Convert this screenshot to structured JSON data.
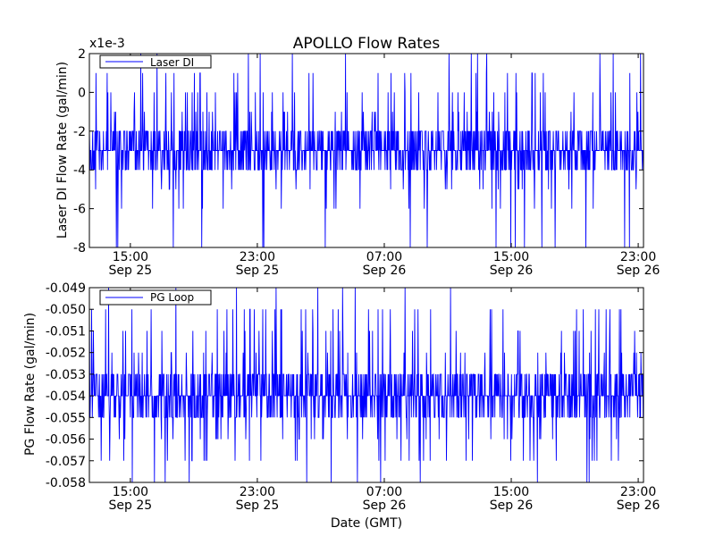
{
  "title": "APOLLO Flow Rates",
  "chart_data": [
    {
      "type": "line",
      "title": "APOLLO Flow Rates",
      "ylabel": "Laser DI Flow Rate (gal/min)",
      "y_multiplier_label": "x1e-3",
      "xlabel": "",
      "ylim": [
        -8,
        2
      ],
      "yticks": [
        "2",
        "0",
        "-2",
        "-4",
        "-6",
        "-8"
      ],
      "xticks": [
        {
          "time": "15:00",
          "date": "Sep 25"
        },
        {
          "time": "23:00",
          "date": "Sep 25"
        },
        {
          "time": "07:00",
          "date": "Sep 26"
        },
        {
          "time": "15:00",
          "date": "Sep 26"
        },
        {
          "time": "23:00",
          "date": "Sep 26"
        }
      ],
      "xlim": [
        "2013-09-25 12:25",
        "2013-09-26 23:20"
      ],
      "grid": false,
      "legend_placement": "top-left",
      "series": [
        {
          "name": "Laser DI",
          "color": "#0000ff",
          "baseline": -3,
          "typical_range": [
            -4,
            -2
          ],
          "min": -8,
          "max": 2,
          "x_spikes_to_min": [
            "2013-09-25 14:50",
            "2013-09-26 07:00"
          ],
          "spikes_to_max": [
            "2013-09-25 13:40",
            "2013-09-25 22:45",
            "2013-09-26 07:00",
            "2013-09-26 15:00"
          ]
        }
      ]
    },
    {
      "type": "line",
      "title": "",
      "ylabel": "PG Flow Rate (gal/min)",
      "xlabel": "Date (GMT)",
      "ylim": [
        -0.058,
        -0.049
      ],
      "yticks": [
        "-0.049",
        "-0.050",
        "-0.051",
        "-0.052",
        "-0.053",
        "-0.054",
        "-0.055",
        "-0.056",
        "-0.057",
        "-0.058"
      ],
      "xticks": [
        {
          "time": "15:00",
          "date": "Sep 25"
        },
        {
          "time": "23:00",
          "date": "Sep 25"
        },
        {
          "time": "07:00",
          "date": "Sep 26"
        },
        {
          "time": "15:00",
          "date": "Sep 26"
        },
        {
          "time": "23:00",
          "date": "Sep 26"
        }
      ],
      "xlim": [
        "2013-09-25 12:25",
        "2013-09-26 23:20"
      ],
      "grid": false,
      "legend_placement": "top-left",
      "series": [
        {
          "name": "PG Loop",
          "color": "#0000ff",
          "baseline": -0.054,
          "typical_range": [
            -0.055,
            -0.053
          ],
          "min": -0.058,
          "max": -0.049
        }
      ]
    }
  ]
}
